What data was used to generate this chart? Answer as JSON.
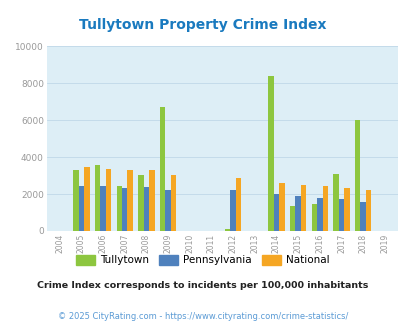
{
  "title": "Tullytown Property Crime Index",
  "title_color": "#1a7abf",
  "years": [
    2004,
    2005,
    2006,
    2007,
    2008,
    2009,
    2010,
    2011,
    2012,
    2013,
    2014,
    2015,
    2016,
    2017,
    2018,
    2019
  ],
  "tullytown": [
    0,
    3300,
    3550,
    2450,
    3050,
    6700,
    0,
    0,
    100,
    0,
    8400,
    1350,
    1480,
    3100,
    6000,
    0
  ],
  "pennsylvania": [
    0,
    2450,
    2450,
    2350,
    2380,
    2200,
    0,
    0,
    2200,
    0,
    2000,
    1900,
    1800,
    1720,
    1550,
    0
  ],
  "national": [
    0,
    3450,
    3380,
    3300,
    3300,
    3050,
    0,
    0,
    2850,
    0,
    2600,
    2480,
    2420,
    2340,
    2200,
    0
  ],
  "tullytown_color": "#8dc63f",
  "pennsylvania_color": "#4f81bd",
  "national_color": "#f5a623",
  "plot_bg_color": "#ddeef6",
  "fig_bg_color": "#ffffff",
  "ylim": [
    0,
    10000
  ],
  "yticks": [
    0,
    2000,
    4000,
    6000,
    8000,
    10000
  ],
  "bar_width": 0.25,
  "grid_color": "#c0d8e8",
  "subtitle": "Crime Index corresponds to incidents per 100,000 inhabitants",
  "footer": "© 2025 CityRating.com - https://www.cityrating.com/crime-statistics/",
  "subtitle_color": "#222222",
  "footer_color": "#5b9bd5"
}
